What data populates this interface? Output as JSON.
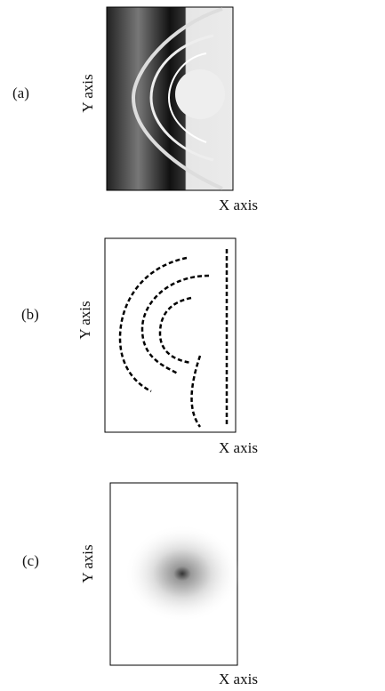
{
  "panels": [
    {
      "label": "(a)",
      "x_label": "X axis",
      "y_label": "Y axis"
    },
    {
      "label": "(b)",
      "x_label": "X axis",
      "y_label": "Y axis"
    },
    {
      "label": "(c)",
      "x_label": "X axis",
      "y_label": "Y axis"
    }
  ]
}
